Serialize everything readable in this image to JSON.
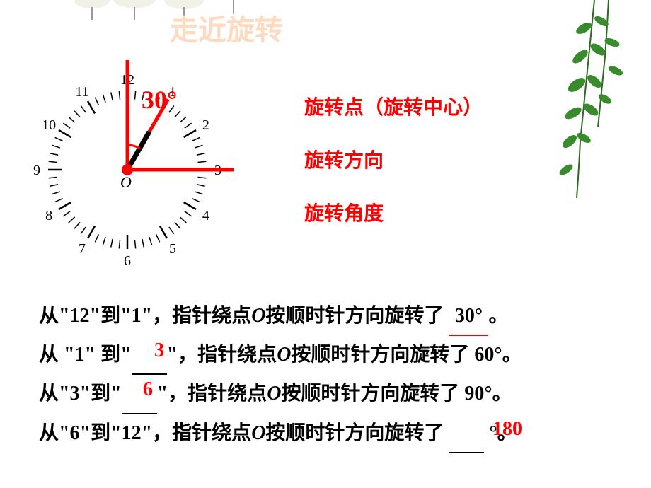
{
  "title_faded": "走近旋转",
  "clock": {
    "numbers": [
      "12",
      "1",
      "2",
      "3",
      "4",
      "5",
      "6",
      "7",
      "8",
      "9",
      "10",
      "11"
    ],
    "center_label": "O",
    "angle_text": "30°",
    "tick_color": "#000000",
    "number_color": "#000000",
    "number_fontsize": 20,
    "hand_main": {
      "color": "#ff0000",
      "width": 5,
      "angle_start": 0,
      "angle_end": 0,
      "length": 115
    },
    "hand_red_30": {
      "color": "#ff0000",
      "width": 5,
      "angle_deg": 30,
      "length": 115
    },
    "hand_black_30": {
      "color": "#000000",
      "width": 7,
      "angle_deg": 30,
      "length": 62
    },
    "hand_right_dashed": {
      "color": "#000000",
      "angle_deg": 90
    },
    "hand_right_red": {
      "color": "#ff0000",
      "width": 5,
      "angle_deg": 90,
      "length": 170
    },
    "center_dot": {
      "color": "#ff0000",
      "radius": 8
    },
    "arc_color": "#ff0000"
  },
  "side": {
    "line1": "旋转点（旋转中心）",
    "line2": "旋转方向",
    "line3": "旋转角度"
  },
  "lines": {
    "l1": {
      "pre": "从\"12\"到\"1\"，指针绕点",
      "o": "O",
      "mid": "按顺时针方向旋转了",
      "ans": "30°",
      "post": "。"
    },
    "l2": {
      "pre": "从 \"1\" 到\"",
      "blank_fill": "3",
      "mid1": "\"，指针绕点",
      "o": "O",
      "mid2": "按顺时针方向旋转了 60°。"
    },
    "l3": {
      "pre": "从\"3\"到\"",
      "blank_fill": "6",
      "mid1": "\"，指针绕点",
      "o": "O",
      "mid2": "按顺时针方向旋转了 90°。"
    },
    "l4": {
      "pre": "从\"6\"到\"12\"，指针绕点",
      "o": "O",
      "mid": "按顺时针方向旋转了 ",
      "ans": "180",
      "post": " °。"
    }
  },
  "colors": {
    "red": "#ff0000",
    "black": "#000000",
    "faded_title": "#fddac0",
    "vine_green": "#3a8b2e",
    "vine_dark": "#2a6b1f",
    "bg": "#ffffff"
  }
}
